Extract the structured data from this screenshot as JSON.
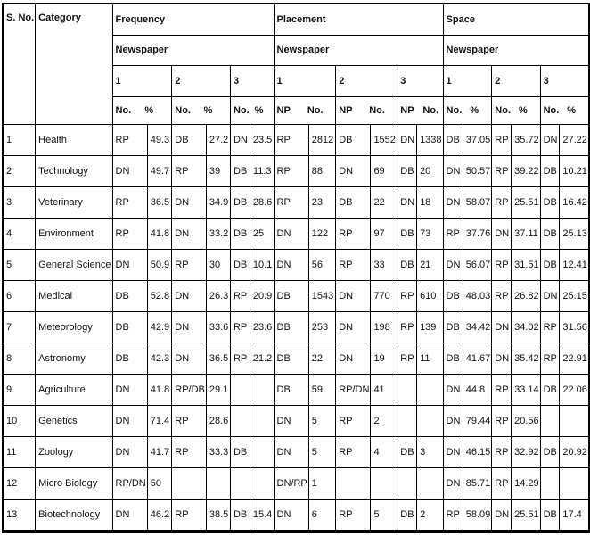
{
  "header": {
    "sno_label": "S. No.",
    "category_label": "Category",
    "sections": [
      {
        "title": "Frequency",
        "subtitle": "Newspaper",
        "groups": [
          {
            "num": "1",
            "a": "No.",
            "b": "%"
          },
          {
            "num": "2",
            "a": "No.",
            "b": "%"
          },
          {
            "num": "3",
            "a": "No.",
            "b": "%"
          }
        ]
      },
      {
        "title": "Placement",
        "subtitle": "Newspaper",
        "groups": [
          {
            "num": "1",
            "a": "NP",
            "b": "No."
          },
          {
            "num": "2",
            "a": "NP",
            "b": "No."
          },
          {
            "num": "3",
            "a": "NP",
            "b": "No."
          }
        ]
      },
      {
        "title": "Space",
        "subtitle": "Newspaper",
        "groups": [
          {
            "num": "1",
            "a": "No.",
            "b": "%"
          },
          {
            "num": "2",
            "a": "No.",
            "b": "%"
          },
          {
            "num": "3",
            "a": "No.",
            "b": "%"
          }
        ]
      }
    ]
  },
  "rows": [
    {
      "sno": "1",
      "category": "Health",
      "cells": [
        "RP",
        "49.3",
        "DB",
        "27.2",
        "DN",
        "23.5",
        "RP",
        "2812",
        "DB",
        "1552",
        "DN",
        "1338",
        "DB",
        "37.05",
        "RP",
        "35.72",
        "DN",
        "27.22"
      ]
    },
    {
      "sno": "2",
      "category": "Technology",
      "cells": [
        "DN",
        "49.7",
        "RP",
        "39",
        "DB",
        "11.3",
        "RP",
        "88",
        "DN",
        "69",
        "DB",
        "20",
        "DN",
        "50.57",
        "RP",
        "39.22",
        "DB",
        "10.21"
      ]
    },
    {
      "sno": "3",
      "category": "Veterinary",
      "cells": [
        "RP",
        "36.5",
        "DN",
        "34.9",
        "DB",
        "28.6",
        "RP",
        "23",
        "DB",
        "22",
        "DN",
        "18",
        "DN",
        "58.07",
        "RP",
        "25.51",
        "DB",
        "16.42"
      ]
    },
    {
      "sno": "4",
      "category": "Environment",
      "cells": [
        "RP",
        "41.8",
        "DN",
        "33.2",
        "DB",
        "25",
        "DN",
        "122",
        "RP",
        "97",
        "DB",
        "73",
        "RP",
        "37.76",
        "DN",
        "37.11",
        "DB",
        "25.13"
      ]
    },
    {
      "sno": "5",
      "category": "General Science",
      "cells": [
        "DN",
        "50.9",
        "RP",
        "30",
        "DB",
        "10.1",
        "DN",
        "56",
        "RP",
        "33",
        "DB",
        "21",
        "DN",
        "56.07",
        "RP",
        "31.51",
        "DB",
        "12.41"
      ]
    },
    {
      "sno": "6",
      "category": "Medical",
      "cells": [
        "DB",
        "52.8",
        "DN",
        "26.3",
        "RP",
        "20.9",
        "DB",
        "1543",
        "DN",
        "770",
        "RP",
        "610",
        "DB",
        "48.03",
        "RP",
        "26.82",
        "DN",
        "25.15"
      ]
    },
    {
      "sno": "7",
      "category": "Meteorology",
      "cells": [
        "DB",
        "42.9",
        "DN",
        "33.6",
        "RP",
        "23.6",
        "DB",
        "253",
        "DN",
        "198",
        "RP",
        "139",
        "DB",
        "34.42",
        "DN",
        "34.02",
        "RP",
        "31.56"
      ]
    },
    {
      "sno": "8",
      "category": "Astronomy",
      "cells": [
        "DB",
        "42.3",
        "DN",
        "36.5",
        "RP",
        "21.2",
        "DB",
        "22",
        "DN",
        "19",
        "RP",
        "11",
        "DB",
        "41.67",
        "DN",
        "35.42",
        "RP",
        "22.91"
      ]
    },
    {
      "sno": "9",
      "category": "Agriculture",
      "cells": [
        "DN",
        "41.8",
        "RP/DB",
        "29.1",
        "",
        "",
        "DB",
        "59",
        "RP/DN",
        "41",
        "",
        "",
        "DN",
        "44.8",
        "RP",
        "33.14",
        "DB",
        "22.06"
      ]
    },
    {
      "sno": "10",
      "category": "Genetics",
      "cells": [
        "DN",
        "71.4",
        "RP",
        "28.6",
        "",
        "",
        "DN",
        "5",
        "RP",
        "2",
        "",
        "",
        "DN",
        "79.44",
        "RP",
        "20.56",
        "",
        ""
      ]
    },
    {
      "sno": "11",
      "category": "Zoology",
      "cells": [
        "DN",
        "41.7",
        "RP",
        "33.3",
        "DB",
        "",
        "DN",
        "5",
        "RP",
        "4",
        "DB",
        "3",
        "DN",
        "46.15",
        "RP",
        "32.92",
        "DB",
        "20.92"
      ]
    },
    {
      "sno": "12",
      "category": "Micro Biology",
      "cells": [
        "RP/DN",
        "50",
        "",
        "",
        "",
        "",
        "DN/RP",
        "1",
        "",
        "",
        "",
        "",
        "DN",
        "85.71",
        "RP",
        "14.29",
        "",
        ""
      ]
    },
    {
      "sno": "13",
      "category": "Biotechnology",
      "cells": [
        "DN",
        "46.2",
        "RP",
        "38.5",
        "DB",
        "15.4",
        "DN",
        "6",
        "RP",
        "5",
        "DB",
        "2",
        "RP",
        "58.09",
        "DN",
        "25.51",
        "DB",
        "17.4"
      ]
    }
  ]
}
